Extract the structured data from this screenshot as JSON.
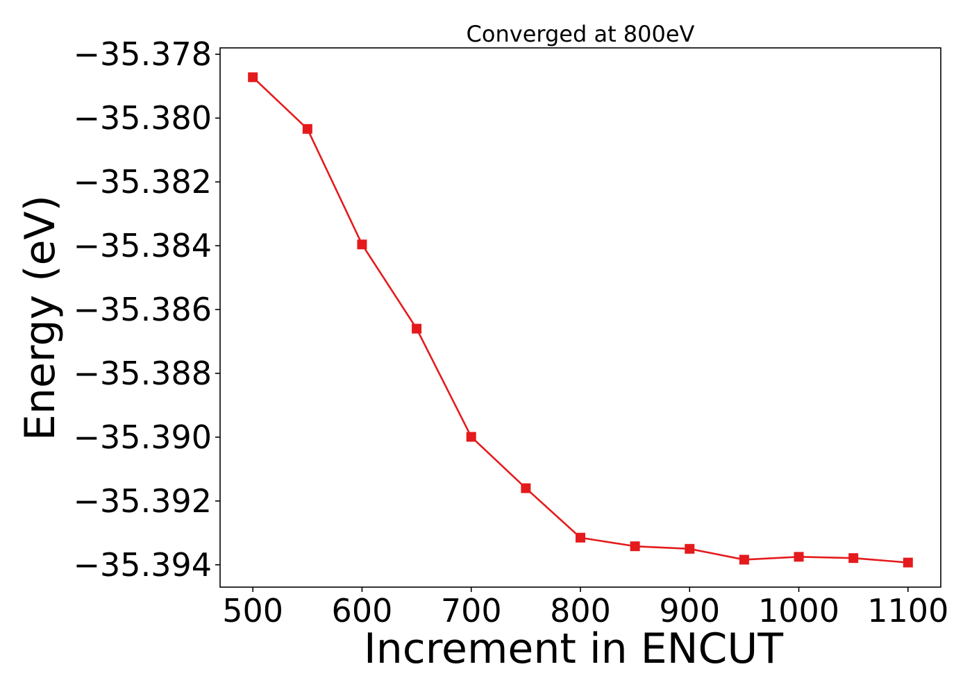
{
  "chart_data": {
    "type": "line",
    "title": "Converged at 800eV",
    "xlabel": "Increment in ENCUT",
    "ylabel": "Energy (eV)",
    "x": [
      500,
      550,
      600,
      650,
      700,
      750,
      800,
      850,
      900,
      950,
      1000,
      1050,
      1100
    ],
    "x_ticks": [
      500,
      600,
      700,
      800,
      900,
      1000,
      1100
    ],
    "x_tick_labels": [
      "500",
      "600",
      "700",
      "800",
      "900",
      "1000",
      "1100"
    ],
    "y_ticks": [
      -35.378,
      -35.38,
      -35.382,
      -35.384,
      -35.386,
      -35.388,
      -35.39,
      -35.392,
      -35.394
    ],
    "y_tick_labels": [
      "−35.378",
      "−35.380",
      "−35.382",
      "−35.384",
      "−35.386",
      "−35.388",
      "−35.390",
      "−35.392",
      "−35.394"
    ],
    "xlim": [
      470,
      1130
    ],
    "ylim": [
      -35.3947,
      -35.3778
    ],
    "grid": false,
    "series": [
      {
        "color": "#e41a1c",
        "marker": "square",
        "values": [
          -35.37872,
          -35.38034,
          -35.38396,
          -35.3866,
          -35.38999,
          -35.3916,
          -35.39315,
          -35.39342,
          -35.3935,
          -35.39384,
          -35.39375,
          -35.39379,
          -35.39393
        ]
      }
    ]
  }
}
